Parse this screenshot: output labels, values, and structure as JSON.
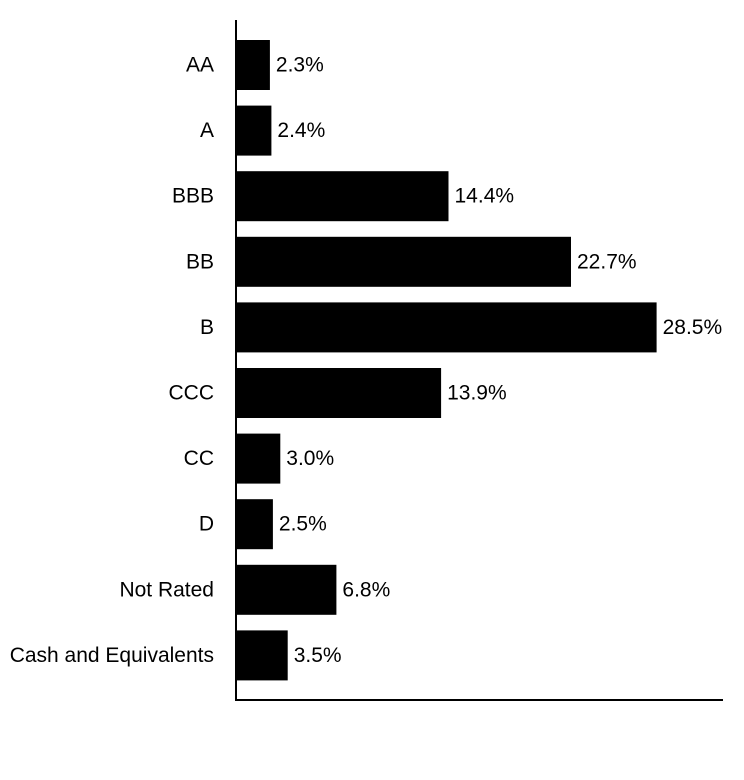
{
  "chart_data": {
    "type": "bar",
    "orientation": "horizontal",
    "categories": [
      "AA",
      "A",
      "BBB",
      "BB",
      "B",
      "CCC",
      "CC",
      "D",
      "Not Rated",
      "Cash and Equivalents"
    ],
    "values": [
      2.3,
      2.4,
      14.4,
      22.7,
      28.5,
      13.9,
      3.0,
      2.5,
      6.8,
      3.5
    ],
    "value_labels": [
      "2.3%",
      "2.4%",
      "14.4%",
      "22.7%",
      "28.5%",
      "13.9%",
      "3.0%",
      "2.5%",
      "6.8%",
      "3.5%"
    ],
    "unit": "%",
    "xlim": [
      0,
      33
    ],
    "grid": false,
    "legend": "none",
    "colors": {
      "bar": "#000000",
      "axis": "#000000",
      "text": "#000000"
    }
  }
}
